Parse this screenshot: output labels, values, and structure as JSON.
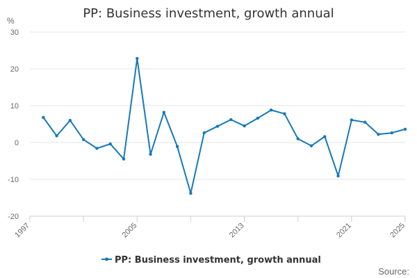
{
  "title": "PP: Business investment, growth annual",
  "source_label": "Source:",
  "chart_data": {
    "type": "line",
    "title": "PP: Business investment, growth annual",
    "ylabel": "%",
    "xlabel": "",
    "ylim": [
      -20,
      30
    ],
    "yticks": [
      30,
      20,
      10,
      0,
      -10,
      -20
    ],
    "xlim": [
      1997,
      2025
    ],
    "xticks": [
      "1997",
      "2005",
      "2013",
      "2021",
      "2025"
    ],
    "grid": true,
    "legend_position": "bottom",
    "color": "#1479b8",
    "series": [
      {
        "name": "PP: Business investment, growth annual",
        "x": [
          1998,
          1999,
          2000,
          2001,
          2002,
          2003,
          2004,
          2005,
          2006,
          2007,
          2008,
          2009,
          2010,
          2011,
          2012,
          2013,
          2014,
          2015,
          2016,
          2017,
          2018,
          2019,
          2020,
          2021,
          2022,
          2023,
          2024,
          2025
        ],
        "values": [
          6.8,
          1.8,
          6.0,
          0.8,
          -1.6,
          -0.4,
          -4.5,
          22.8,
          -3.2,
          8.2,
          -1.1,
          -13.8,
          2.6,
          4.4,
          6.2,
          4.5,
          6.6,
          8.8,
          7.8,
          1.0,
          -0.9,
          1.6,
          -9.1,
          6.1,
          5.5,
          2.2,
          2.6,
          3.6
        ]
      }
    ]
  }
}
